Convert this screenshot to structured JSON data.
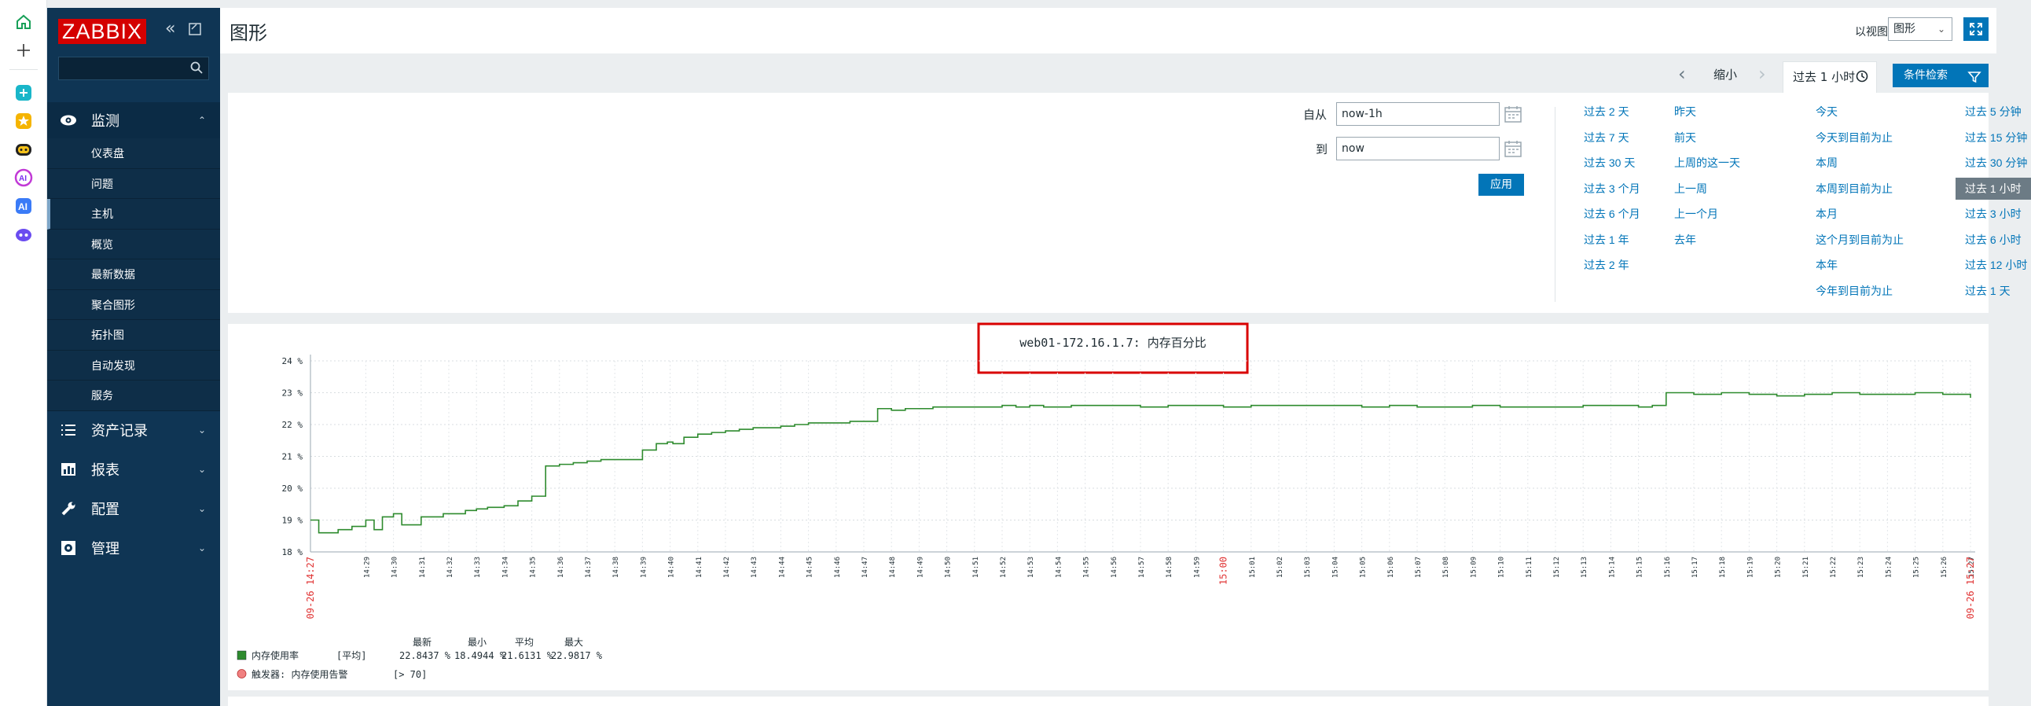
{
  "sidebar": {
    "logo": "ZABBIX",
    "sections": {
      "monitoring": "监测",
      "inventory": "资产记录",
      "reports": "报表",
      "configuration": "配置",
      "administration": "管理"
    },
    "monitoring_items": [
      "仪表盘",
      "问题",
      "主机",
      "概览",
      "最新数据",
      "聚合图形",
      "拓扑图",
      "自动发现",
      "服务"
    ]
  },
  "header": {
    "title": "图形",
    "view_as_label": "以视图",
    "view_as_value": "图形"
  },
  "filter_bar": {
    "zoom_out": "缩小",
    "time_tab": "过去 1 小时",
    "filter_button": "条件检索"
  },
  "filter_panel": {
    "from_label": "自从",
    "from_value": "now-1h",
    "to_label": "到",
    "to_value": "now",
    "apply": "应用",
    "quick_ranges": [
      [
        "过去 2 天",
        "过去 7 天",
        "过去 30 天",
        "过去 3 个月",
        "过去 6 个月",
        "过去 1 年",
        "过去 2 年"
      ],
      [
        "昨天",
        "前天",
        "上周的这一天",
        "上一周",
        "上一个月",
        "去年"
      ],
      [
        "今天",
        "今天到目前为止",
        "本周",
        "本周到目前为止",
        "本月",
        "这个月到目前为止",
        "本年",
        "今年到目前为止"
      ],
      [
        "过去 5 分钟",
        "过去 15 分钟",
        "过去 30 分钟",
        "过去 1 小时",
        "过去 3 小时",
        "过去 6 小时",
        "过去 12 小时",
        "过去 1 天"
      ]
    ],
    "selected": "过去 1 小时"
  },
  "chart_data": {
    "type": "line",
    "title": "web01-172.16.1.7: 内存百分比",
    "unit": "%",
    "ylim": [
      18,
      24
    ],
    "y_ticks": [
      "18 %",
      "19 %",
      "20 %",
      "21 %",
      "22 %",
      "23 %",
      "24 %"
    ],
    "x_start_label": "09-26 14:27",
    "x_end_label": "09-26 15:27",
    "x_ticks": [
      "14:29",
      "14:30",
      "14:31",
      "14:32",
      "14:33",
      "14:34",
      "14:35",
      "14:36",
      "14:37",
      "14:38",
      "14:39",
      "14:40",
      "14:41",
      "14:42",
      "14:43",
      "14:44",
      "14:45",
      "14:46",
      "14:47",
      "14:48",
      "14:49",
      "14:50",
      "14:51",
      "14:52",
      "14:53",
      "14:54",
      "14:55",
      "14:56",
      "14:57",
      "14:58",
      "14:59",
      "15:00",
      "15:01",
      "15:02",
      "15:03",
      "15:04",
      "15:05",
      "15:06",
      "15:07",
      "15:08",
      "15:09",
      "15:10",
      "15:11",
      "15:12",
      "15:13",
      "15:14",
      "15:15",
      "15:16",
      "15:17",
      "15:18",
      "15:19",
      "15:20",
      "15:21",
      "15:22",
      "15:23",
      "15:24",
      "15:25",
      "15:26",
      "15:27"
    ],
    "x_highlight": "15:00",
    "series": [
      {
        "name": "内存使用率",
        "color": "#2e8b2e",
        "x_minutes": [
          0,
          0.3,
          0.8,
          1,
          1.5,
          2,
          2.3,
          2.6,
          3,
          3.3,
          3.6,
          4,
          4.4,
          4.8,
          5.2,
          5.6,
          6,
          6.4,
          7,
          7.5,
          8,
          8.5,
          9,
          9.5,
          10,
          10.5,
          11,
          11.5,
          12,
          12.5,
          12.9,
          13.1,
          13.5,
          14,
          14.5,
          15,
          15.5,
          16,
          16.5,
          17,
          17.5,
          18,
          18.5,
          19,
          19.5,
          20,
          20.5,
          21,
          21.5,
          22,
          22.5,
          23,
          23.5,
          24,
          24.5,
          25,
          25.5,
          26,
          26.5,
          27,
          27.5,
          28,
          28.5,
          29,
          29.5,
          30,
          31,
          32,
          33,
          34,
          35,
          36,
          37,
          38,
          39,
          40,
          41,
          42,
          43,
          44,
          45,
          46,
          47,
          48,
          48.5,
          49,
          50,
          51,
          52,
          53,
          54,
          55,
          56,
          57,
          58,
          59,
          60
        ],
        "values": [
          19.0,
          18.6,
          18.6,
          18.7,
          18.8,
          19.0,
          18.7,
          19.1,
          19.2,
          18.85,
          18.85,
          19.1,
          19.1,
          19.2,
          19.2,
          19.3,
          19.35,
          19.4,
          19.45,
          19.6,
          19.75,
          20.7,
          20.75,
          20.8,
          20.85,
          20.9,
          20.9,
          20.9,
          21.2,
          21.4,
          21.45,
          21.4,
          21.6,
          21.7,
          21.75,
          21.8,
          21.85,
          21.9,
          21.9,
          21.95,
          22.0,
          22.05,
          22.05,
          22.05,
          22.1,
          22.1,
          22.5,
          22.45,
          22.5,
          22.5,
          22.55,
          22.55,
          22.55,
          22.55,
          22.55,
          22.6,
          22.55,
          22.6,
          22.55,
          22.55,
          22.6,
          22.6,
          22.6,
          22.6,
          22.6,
          22.55,
          22.6,
          22.6,
          22.55,
          22.6,
          22.6,
          22.6,
          22.6,
          22.55,
          22.6,
          22.55,
          22.55,
          22.6,
          22.55,
          22.55,
          22.55,
          22.6,
          22.6,
          22.55,
          22.6,
          23.0,
          22.95,
          23.0,
          22.95,
          22.9,
          22.95,
          23.0,
          22.95,
          22.95,
          23.0,
          22.95,
          22.84
        ]
      }
    ],
    "legend": {
      "columns": [
        "最新",
        "最小",
        "平均",
        "最大"
      ],
      "series_label": "内存使用率",
      "agg": "[平均]",
      "stats": [
        "22.8437 %",
        "18.4944 %",
        "21.6131 %",
        "22.9817 %"
      ],
      "trigger_label": "触发器: 内存使用告警",
      "trigger_value": "[> 70]"
    }
  }
}
